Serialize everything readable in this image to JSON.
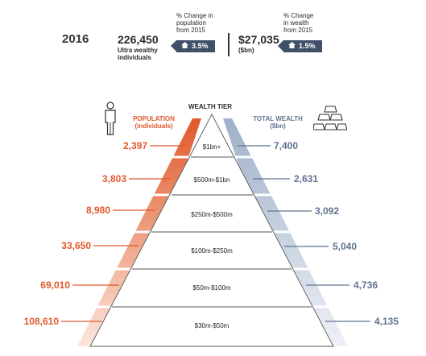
{
  "header": {
    "year": "2016",
    "population_total": "226,450",
    "population_caption_1": "Ultra wealthy",
    "population_caption_2": "individuals",
    "pop_change_caption_1": "% Change in",
    "pop_change_caption_2": "population",
    "pop_change_caption_3": "from 2015",
    "pop_change_value": "3.5%",
    "wealth_total": "$27,035",
    "wealth_unit": "($bn)",
    "wealth_change_caption_1": "% Change",
    "wealth_change_caption_2": "in wealth",
    "wealth_change_caption_3": "from 2015",
    "wealth_change_value": "1.5%"
  },
  "pyramid": {
    "population_header_1": "POPULATION",
    "population_header_2": "(individuals)",
    "tier_header": "WEALTH TIER",
    "wealth_header_1": "TOTAL WEALTH",
    "wealth_header_2": "($bn)",
    "tiers": [
      {
        "label": "$1bn+",
        "population": "2,397",
        "wealth": "7,400"
      },
      {
        "label": "$500m-$1bn",
        "population": "3,803",
        "wealth": "2,631"
      },
      {
        "label": "$250m-$500m",
        "population": "8,980",
        "wealth": "3,092"
      },
      {
        "label": "$100m-$250m",
        "population": "33,650",
        "wealth": "5,040"
      },
      {
        "label": "$50m-$100m",
        "population": "69,010",
        "wealth": "4,736"
      },
      {
        "label": "$30m-$50m",
        "population": "108,610",
        "wealth": "4,135"
      }
    ]
  },
  "colors": {
    "orange": "#e0582a",
    "blue_grey": "#5f7391",
    "badge": "#3f5068"
  }
}
